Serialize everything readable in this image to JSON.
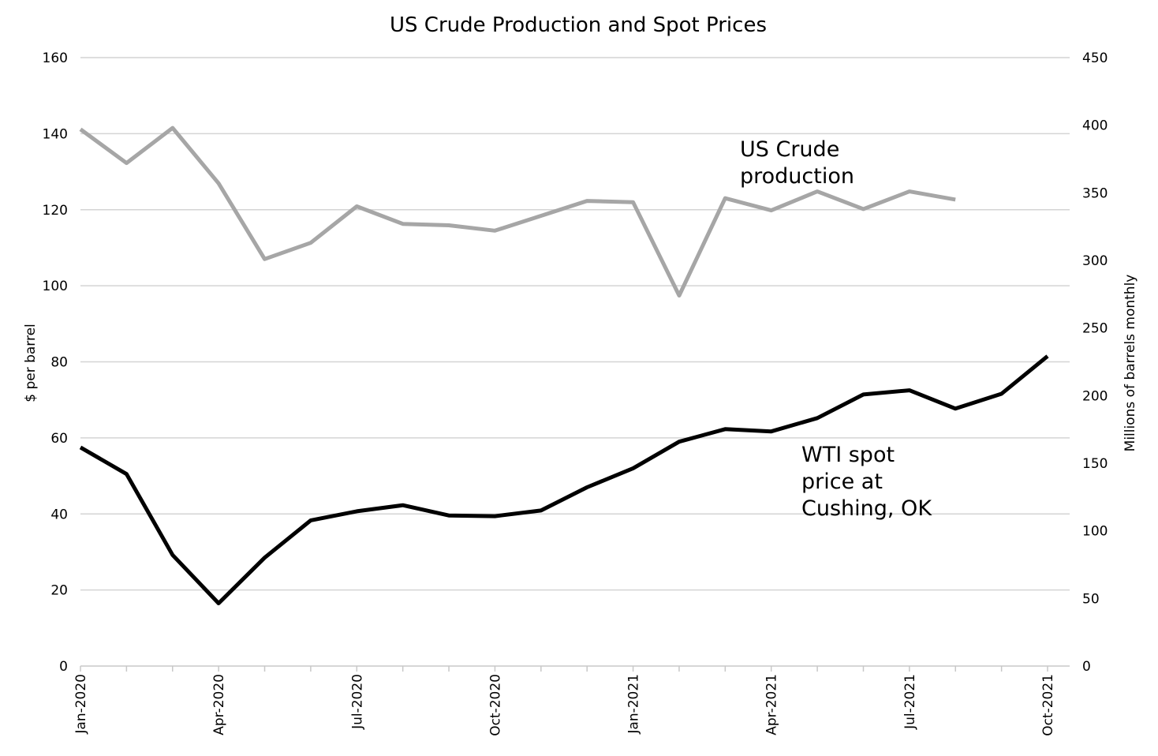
{
  "chart_data": {
    "type": "line",
    "title": "US Crude Production and Spot Prices",
    "y_left": {
      "label": "$ per barrel",
      "ticks": [
        "0",
        "20",
        "40",
        "60",
        "80",
        "100",
        "120",
        "140",
        "160"
      ],
      "lim": [
        0,
        160
      ]
    },
    "y_right": {
      "label": "Millions of barrels monthly",
      "ticks": [
        "0",
        "50",
        "100",
        "150",
        "200",
        "250",
        "300",
        "350",
        "400",
        "450"
      ],
      "lim": [
        0,
        450
      ]
    },
    "x_categories": [
      "Jan-2020",
      "Feb-2020",
      "Mar-2020",
      "Apr-2020",
      "May-2020",
      "Jun-2020",
      "Jul-2020",
      "Aug-2020",
      "Sep-2020",
      "Oct-2020",
      "Nov-2020",
      "Dec-2020",
      "Jan-2021",
      "Feb-2021",
      "Mar-2021",
      "Apr-2021",
      "May-2021",
      "Jun-2021",
      "Jul-2021",
      "Aug-2021",
      "Sep-2021",
      "Oct-2021"
    ],
    "x_tick_labels": [
      "Jan-2020",
      "Apr-2020",
      "Jul-2020",
      "Oct-2020",
      "Jan-2021",
      "Apr-2021",
      "Jul-2021",
      "Oct-2021"
    ],
    "grid": true,
    "series": [
      {
        "name": "US Crude production",
        "axis": "right",
        "color": "#a6a6a6",
        "values": [
          397,
          372,
          398,
          357,
          301,
          313,
          340,
          327,
          326,
          322,
          333,
          344,
          343,
          274,
          346,
          337,
          351,
          338,
          351,
          345
        ]
      },
      {
        "name": "WTI spot price at Cushing, OK",
        "axis": "left",
        "color": "#000000",
        "values": [
          57.5,
          50.5,
          29.2,
          16.5,
          28.5,
          38.3,
          40.7,
          42.3,
          39.6,
          39.4,
          40.9,
          47.0,
          52.0,
          59.0,
          62.3,
          61.7,
          65.2,
          71.4,
          72.5,
          67.7,
          71.6,
          81.5
        ]
      }
    ],
    "annotations": [
      {
        "lines": [
          "US Crude",
          "production"
        ],
        "series": "US Crude production"
      },
      {
        "lines": [
          "WTI spot",
          "price at",
          "Cushing, OK"
        ],
        "series": "WTI spot price at Cushing, OK"
      }
    ]
  }
}
